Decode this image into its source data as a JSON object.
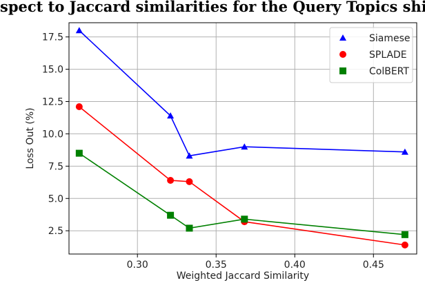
{
  "caption": "spect to Jaccard similarities for the Query Topics shifts.",
  "chart_data": {
    "type": "line",
    "xlabel": "Weighted Jaccard Similarity",
    "ylabel": "Loss Out (%)",
    "xlim": [
      0.2565,
      0.4775
    ],
    "ylim": [
      0.7,
      18.6
    ],
    "xticks": [
      0.3,
      0.35,
      0.4,
      0.45
    ],
    "xtick_labels": [
      "0.30",
      "0.35",
      "0.40",
      "0.45"
    ],
    "yticks": [
      2.5,
      5.0,
      7.5,
      10.0,
      12.5,
      15.0,
      17.5
    ],
    "ytick_labels": [
      "2.5",
      "5.0",
      "7.5",
      "10.0",
      "12.5",
      "15.0",
      "17.5"
    ],
    "grid": true,
    "legend_position": "top-right",
    "x": [
      0.263,
      0.321,
      0.333,
      0.368,
      0.47
    ],
    "series": [
      {
        "name": "Siamese",
        "values": [
          18.0,
          11.4,
          8.3,
          9.0,
          8.6
        ],
        "color": "#0000ff",
        "marker": "triangle"
      },
      {
        "name": "SPLADE",
        "values": [
          12.1,
          6.4,
          6.3,
          3.2,
          1.4
        ],
        "color": "#ff0000",
        "marker": "circle"
      },
      {
        "name": "ColBERT",
        "values": [
          8.5,
          3.7,
          2.7,
          3.4,
          2.2
        ],
        "color": "#008000",
        "marker": "square"
      }
    ]
  }
}
